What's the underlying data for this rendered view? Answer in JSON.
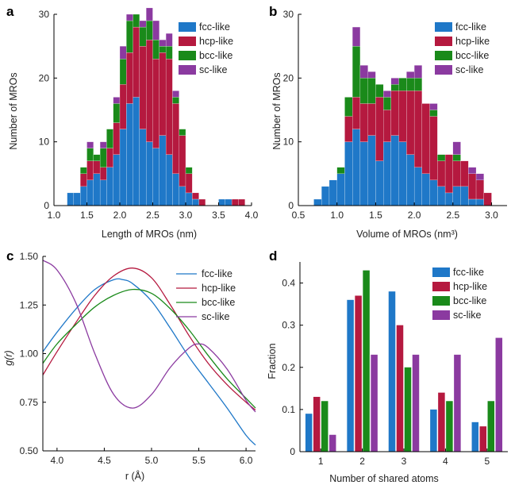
{
  "colors": {
    "fcc": "#1f78c8",
    "hcp": "#b5193f",
    "bcc": "#1a8a1a",
    "sc": "#8b3aa0"
  },
  "chart_data": [
    {
      "panel": "a",
      "type": "bar",
      "stacked": true,
      "xlabel": "Length of MROs (nm)",
      "ylabel": "Number of MROs",
      "xlim": [
        1.0,
        4.0
      ],
      "ylim": [
        0,
        30
      ],
      "xticks": [
        "1.0",
        "1.5",
        "2.0",
        "2.5",
        "3.0",
        "3.5",
        "4.0"
      ],
      "yticks": [
        "0",
        "10",
        "20",
        "30"
      ],
      "bin_width": 0.1,
      "bin_starts": [
        1.2,
        1.3,
        1.4,
        1.5,
        1.6,
        1.7,
        1.8,
        1.9,
        2.0,
        2.1,
        2.2,
        2.3,
        2.4,
        2.5,
        2.6,
        2.7,
        2.8,
        2.9,
        3.0,
        3.1,
        3.2,
        3.3,
        3.4,
        3.5,
        3.6,
        3.7,
        3.8
      ],
      "series": [
        {
          "name": "fcc-like",
          "values": [
            2,
            2,
            3,
            4,
            5,
            4,
            6,
            8,
            12,
            16,
            17,
            12,
            10,
            9,
            11,
            8,
            5,
            3,
            2,
            1,
            0,
            0,
            0,
            1,
            1,
            0,
            0
          ]
        },
        {
          "name": "hcp-like",
          "values": [
            0,
            0,
            2,
            3,
            2,
            2,
            3,
            5,
            7,
            8,
            11,
            13,
            16,
            14,
            13,
            15,
            11,
            8,
            3,
            1,
            1,
            0,
            0,
            0,
            0,
            1,
            1
          ]
        },
        {
          "name": "bcc-like",
          "values": [
            0,
            0,
            1,
            2,
            1,
            3,
            3,
            3,
            4,
            5,
            2,
            3,
            3,
            3,
            1,
            2,
            1,
            1,
            1,
            0,
            0,
            0,
            0,
            0,
            0,
            0,
            0
          ]
        },
        {
          "name": "sc-like",
          "values": [
            0,
            0,
            0,
            1,
            0,
            1,
            0,
            1,
            2,
            1,
            0,
            1,
            2,
            3,
            1,
            2,
            1,
            0,
            0,
            0,
            0,
            0,
            0,
            0,
            0,
            0,
            0
          ]
        }
      ],
      "legend": [
        "fcc-like",
        "hcp-like",
        "bcc-like",
        "sc-like"
      ]
    },
    {
      "panel": "b",
      "type": "bar",
      "stacked": true,
      "xlabel": "Volume of MROs (nm³)",
      "ylabel": "Number of MROs",
      "xlim": [
        0.5,
        3.2
      ],
      "ylim": [
        0,
        30
      ],
      "xticks": [
        "0.5",
        "1.0",
        "1.5",
        "2.0",
        "2.5",
        "3.0"
      ],
      "yticks": [
        "0",
        "10",
        "20",
        "30"
      ],
      "bin_width": 0.1,
      "bin_starts": [
        0.7,
        0.8,
        0.9,
        1.0,
        1.1,
        1.2,
        1.3,
        1.4,
        1.5,
        1.6,
        1.7,
        1.8,
        1.9,
        2.0,
        2.1,
        2.2,
        2.3,
        2.4,
        2.5,
        2.6,
        2.7,
        2.8,
        2.9
      ],
      "series": [
        {
          "name": "fcc-like",
          "values": [
            1,
            3,
            4,
            5,
            10,
            12,
            10,
            11,
            7,
            10,
            11,
            10,
            8,
            6,
            5,
            4,
            3,
            2,
            3,
            3,
            1,
            1,
            0
          ]
        },
        {
          "name": "hcp-like",
          "values": [
            0,
            0,
            0,
            0,
            4,
            5,
            6,
            5,
            10,
            5,
            7,
            8,
            10,
            12,
            11,
            10,
            4,
            6,
            4,
            4,
            4,
            3,
            2
          ]
        },
        {
          "name": "bcc-like",
          "values": [
            0,
            0,
            0,
            1,
            3,
            8,
            4,
            4,
            2,
            2,
            1,
            2,
            2,
            2,
            0,
            1,
            1,
            0,
            1,
            0,
            0,
            0,
            0
          ]
        },
        {
          "name": "sc-like",
          "values": [
            0,
            0,
            0,
            0,
            0,
            3,
            2,
            1,
            0,
            1,
            1,
            0,
            1,
            2,
            0,
            1,
            0,
            0,
            2,
            0,
            1,
            1,
            0
          ]
        }
      ],
      "legend": [
        "fcc-like",
        "hcp-like",
        "bcc-like",
        "sc-like"
      ]
    },
    {
      "panel": "c",
      "type": "line",
      "xlabel": "r (Å)",
      "ylabel": "g(r)",
      "xlim": [
        3.85,
        6.1
      ],
      "ylim": [
        0.5,
        1.5
      ],
      "xticks": [
        "4.0",
        "4.5",
        "5.0",
        "5.5",
        "6.0"
      ],
      "yticks": [
        "0.50",
        "0.75",
        "1.00",
        "1.25",
        "1.50"
      ],
      "series": [
        {
          "name": "fcc-like",
          "x": [
            3.85,
            4.0,
            4.2,
            4.4,
            4.6,
            4.7,
            4.8,
            5.0,
            5.2,
            5.4,
            5.6,
            5.8,
            6.0,
            6.1
          ],
          "y": [
            1.01,
            1.11,
            1.23,
            1.33,
            1.38,
            1.38,
            1.36,
            1.27,
            1.13,
            0.98,
            0.85,
            0.72,
            0.58,
            0.53
          ]
        },
        {
          "name": "hcp-like",
          "x": [
            3.85,
            4.0,
            4.2,
            4.4,
            4.6,
            4.8,
            5.0,
            5.2,
            5.4,
            5.6,
            5.8,
            6.0,
            6.1
          ],
          "y": [
            0.89,
            1.01,
            1.16,
            1.3,
            1.4,
            1.44,
            1.39,
            1.25,
            1.09,
            0.95,
            0.84,
            0.75,
            0.71
          ]
        },
        {
          "name": "bcc-like",
          "x": [
            3.85,
            4.0,
            4.2,
            4.4,
            4.6,
            4.8,
            5.0,
            5.2,
            5.4,
            5.6,
            5.8,
            6.0,
            6.1
          ],
          "y": [
            0.95,
            1.05,
            1.15,
            1.24,
            1.3,
            1.33,
            1.31,
            1.23,
            1.12,
            0.99,
            0.87,
            0.77,
            0.72
          ]
        },
        {
          "name": "sc-like",
          "x": [
            3.85,
            4.0,
            4.2,
            4.4,
            4.6,
            4.8,
            5.0,
            5.2,
            5.4,
            5.5,
            5.6,
            5.8,
            6.0,
            6.1
          ],
          "y": [
            1.48,
            1.43,
            1.26,
            1.0,
            0.79,
            0.72,
            0.79,
            0.93,
            1.03,
            1.05,
            1.03,
            0.92,
            0.76,
            0.7
          ]
        }
      ],
      "legend": [
        "fcc-like",
        "hcp-like",
        "bcc-like",
        "sc-like"
      ]
    },
    {
      "panel": "d",
      "type": "bar",
      "grouped": true,
      "xlabel": "Number of shared atoms",
      "ylabel": "Fraction",
      "ylim": [
        0,
        0.45
      ],
      "categories": [
        "1",
        "2",
        "3",
        "4",
        "5"
      ],
      "yticks": [
        "0",
        "0.1",
        "0.2",
        "0.3",
        "0.4"
      ],
      "series": [
        {
          "name": "fcc-like",
          "values": [
            0.09,
            0.36,
            0.38,
            0.1,
            0.07
          ]
        },
        {
          "name": "hcp-like",
          "values": [
            0.13,
            0.37,
            0.3,
            0.14,
            0.06
          ]
        },
        {
          "name": "bcc-like",
          "values": [
            0.12,
            0.43,
            0.2,
            0.12,
            0.12
          ]
        },
        {
          "name": "sc-like",
          "values": [
            0.04,
            0.23,
            0.23,
            0.23,
            0.27
          ]
        }
      ],
      "legend": [
        "fcc-like",
        "hcp-like",
        "bcc-like",
        "sc-like"
      ]
    }
  ]
}
